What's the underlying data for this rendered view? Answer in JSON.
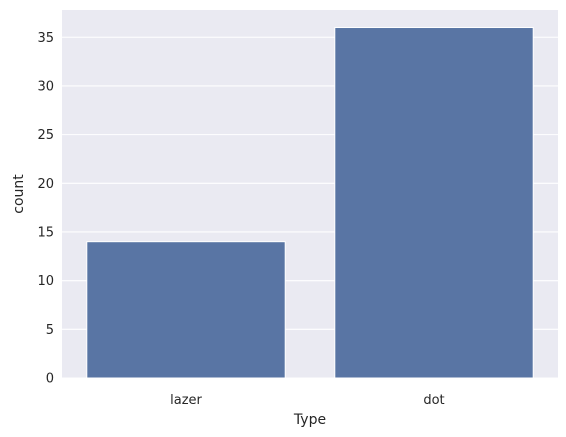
{
  "chart_data": {
    "type": "bar",
    "title": "",
    "xlabel": "Type",
    "ylabel": "count",
    "categories": [
      "lazer",
      "dot"
    ],
    "values": [
      14,
      36
    ],
    "ylim": [
      0,
      37.8
    ],
    "yticks": [
      0,
      5,
      10,
      15,
      20,
      25,
      30,
      35
    ],
    "grid": true,
    "legend": "none",
    "colors": {
      "bar": "#5975a4",
      "plot_background": "#eaeaf2",
      "grid": "#ffffff",
      "text": "#262626"
    }
  }
}
